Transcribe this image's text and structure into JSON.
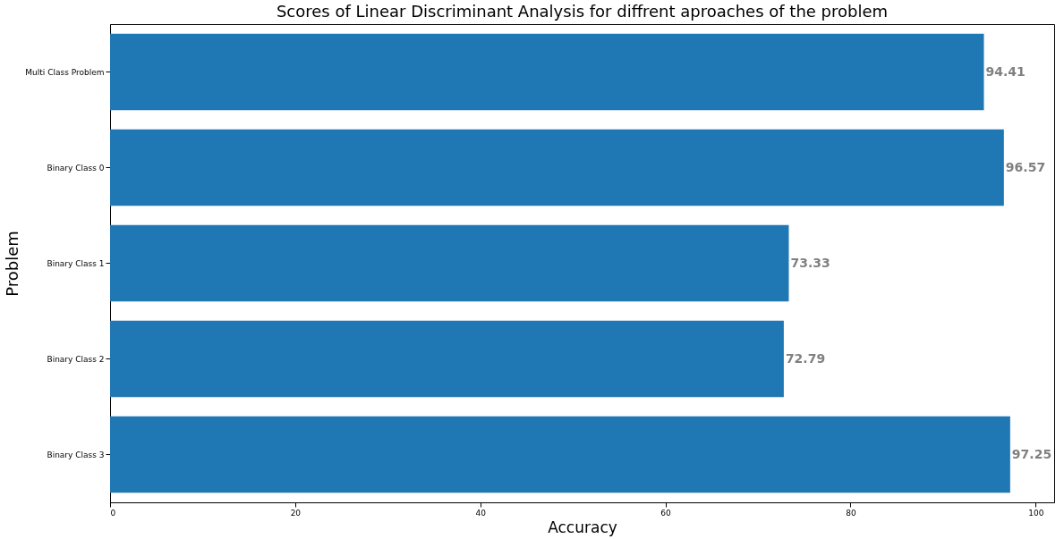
{
  "chart_data": {
    "type": "bar",
    "orientation": "horizontal",
    "title": "Scores of Linear Discriminant Analysis for diffrent aproaches of the problem",
    "xlabel": "Accuracy",
    "ylabel": "Problem",
    "categories": [
      "Multi Class Problem",
      "Binary Class 0",
      "Binary Class 1",
      "Binary Class 2",
      "Binary Class 3"
    ],
    "values": [
      94.41,
      96.57,
      73.33,
      72.79,
      97.25
    ],
    "color": "#1f77b4",
    "xlim": [
      0,
      102
    ],
    "xticks": [
      0,
      20,
      40,
      60,
      80,
      100
    ],
    "grid": false,
    "data_labels": true
  }
}
